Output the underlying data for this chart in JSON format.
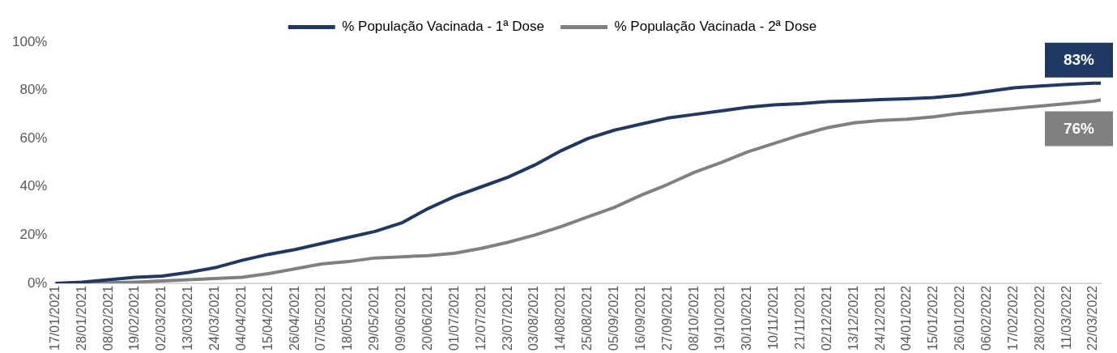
{
  "chart_data": {
    "type": "line",
    "legend": "top",
    "grid": false,
    "marker": "none",
    "line_style": "solid",
    "x": [
      "2021-01-17",
      "2021-01-28",
      "2021-02-08",
      "2021-02-19",
      "2021-03-02",
      "2021-03-13",
      "2021-03-24",
      "2021-04-04",
      "2021-04-15",
      "2021-04-26",
      "2021-05-07",
      "2021-05-18",
      "2021-05-29",
      "2021-06-09",
      "2021-06-20",
      "2021-07-01",
      "2021-07-12",
      "2021-07-23",
      "2021-08-03",
      "2021-08-14",
      "2021-08-25",
      "2021-09-05",
      "2021-09-16",
      "2021-09-27",
      "2021-10-08",
      "2021-10-19",
      "2021-10-30",
      "2021-11-10",
      "2021-11-21",
      "2021-12-02",
      "2021-12-13",
      "2021-12-24",
      "2022-01-04",
      "2022-01-15",
      "2022-01-26",
      "2022-02-06",
      "2022-02-17",
      "2022-02-28",
      "2022-03-11",
      "2022-03-22",
      "2022-03-25"
    ],
    "series": [
      {
        "name": "% População Vacinada - 1ª Dose",
        "color": "#1f3864",
        "values": [
          0,
          0.5,
          1.5,
          2.5,
          3,
          4.5,
          6.5,
          9.5,
          12,
          14,
          16.5,
          19,
          21.5,
          25,
          31,
          36,
          40,
          44,
          49,
          55,
          60,
          63.5,
          66,
          68.5,
          70,
          71.5,
          73,
          74,
          74.5,
          75.3,
          75.7,
          76.2,
          76.5,
          77,
          78,
          79.5,
          81,
          81.8,
          82.5,
          83,
          83
        ]
      },
      {
        "name": "% População Vacinada - 2ª Dose",
        "color": "#808080",
        "values": [
          0,
          0,
          0.2,
          0.5,
          1,
          1.5,
          2,
          2.5,
          4,
          6,
          8,
          9,
          10.5,
          11,
          11.5,
          12.5,
          14.5,
          17,
          20,
          23.5,
          27.5,
          31.5,
          36.5,
          41,
          46,
          50,
          54.5,
          58,
          61.5,
          64.5,
          66.5,
          67.5,
          68,
          69,
          70.5,
          71.5,
          72.5,
          73.5,
          74.5,
          75.5,
          76
        ]
      }
    ],
    "xlim": [
      "2021-01-17",
      "2022-03-25"
    ],
    "xticks": [
      {
        "value": "2021-01-17",
        "label": "17/01/2021"
      },
      {
        "value": "2021-01-28",
        "label": "28/01/2021"
      },
      {
        "value": "2021-02-08",
        "label": "08/02/2021"
      },
      {
        "value": "2021-02-19",
        "label": "19/02/2021"
      },
      {
        "value": "2021-03-02",
        "label": "02/03/2021"
      },
      {
        "value": "2021-03-13",
        "label": "13/03/2021"
      },
      {
        "value": "2021-03-24",
        "label": "24/03/2021"
      },
      {
        "value": "2021-04-04",
        "label": "04/04/2021"
      },
      {
        "value": "2021-04-15",
        "label": "15/04/2021"
      },
      {
        "value": "2021-04-26",
        "label": "26/04/2021"
      },
      {
        "value": "2021-05-07",
        "label": "07/05/2021"
      },
      {
        "value": "2021-05-18",
        "label": "18/05/2021"
      },
      {
        "value": "2021-05-29",
        "label": "29/05/2021"
      },
      {
        "value": "2021-06-09",
        "label": "09/06/2021"
      },
      {
        "value": "2021-06-20",
        "label": "20/06/2021"
      },
      {
        "value": "2021-07-01",
        "label": "01/07/2021"
      },
      {
        "value": "2021-07-12",
        "label": "12/07/2021"
      },
      {
        "value": "2021-07-23",
        "label": "23/07/2021"
      },
      {
        "value": "2021-08-03",
        "label": "03/08/2021"
      },
      {
        "value": "2021-08-14",
        "label": "14/08/2021"
      },
      {
        "value": "2021-08-25",
        "label": "25/08/2021"
      },
      {
        "value": "2021-09-05",
        "label": "05/09/2021"
      },
      {
        "value": "2021-09-16",
        "label": "16/09/2021"
      },
      {
        "value": "2021-09-27",
        "label": "27/09/2021"
      },
      {
        "value": "2021-10-08",
        "label": "08/10/2021"
      },
      {
        "value": "2021-10-19",
        "label": "19/10/2021"
      },
      {
        "value": "2021-10-30",
        "label": "30/10/2021"
      },
      {
        "value": "2021-11-10",
        "label": "10/11/2021"
      },
      {
        "value": "2021-11-21",
        "label": "21/11/2021"
      },
      {
        "value": "2021-12-02",
        "label": "02/12/2021"
      },
      {
        "value": "2021-12-13",
        "label": "13/12/2021"
      },
      {
        "value": "2021-12-24",
        "label": "24/12/2021"
      },
      {
        "value": "2022-01-04",
        "label": "04/01/2022"
      },
      {
        "value": "2022-01-15",
        "label": "15/01/2022"
      },
      {
        "value": "2022-01-26",
        "label": "26/01/2022"
      },
      {
        "value": "2022-02-06",
        "label": "06/02/2022"
      },
      {
        "value": "2022-02-17",
        "label": "17/02/2022"
      },
      {
        "value": "2022-02-28",
        "label": "28/02/2022"
      },
      {
        "value": "2022-03-11",
        "label": "11/03/2022"
      },
      {
        "value": "2022-03-22",
        "label": "22/03/2022"
      }
    ],
    "ylim": [
      0,
      100
    ],
    "yticks": [
      {
        "value": 0,
        "label": "0%"
      },
      {
        "value": 20,
        "label": "20%"
      },
      {
        "value": 40,
        "label": "40%"
      },
      {
        "value": 60,
        "label": "60%"
      },
      {
        "value": 80,
        "label": "80%"
      },
      {
        "value": 100,
        "label": "100%"
      }
    ],
    "annotations": [
      {
        "text": "83%",
        "x": "2022-03-25",
        "y": 83
      },
      {
        "text": "76%",
        "x": "2022-03-25",
        "y": 76
      }
    ]
  }
}
